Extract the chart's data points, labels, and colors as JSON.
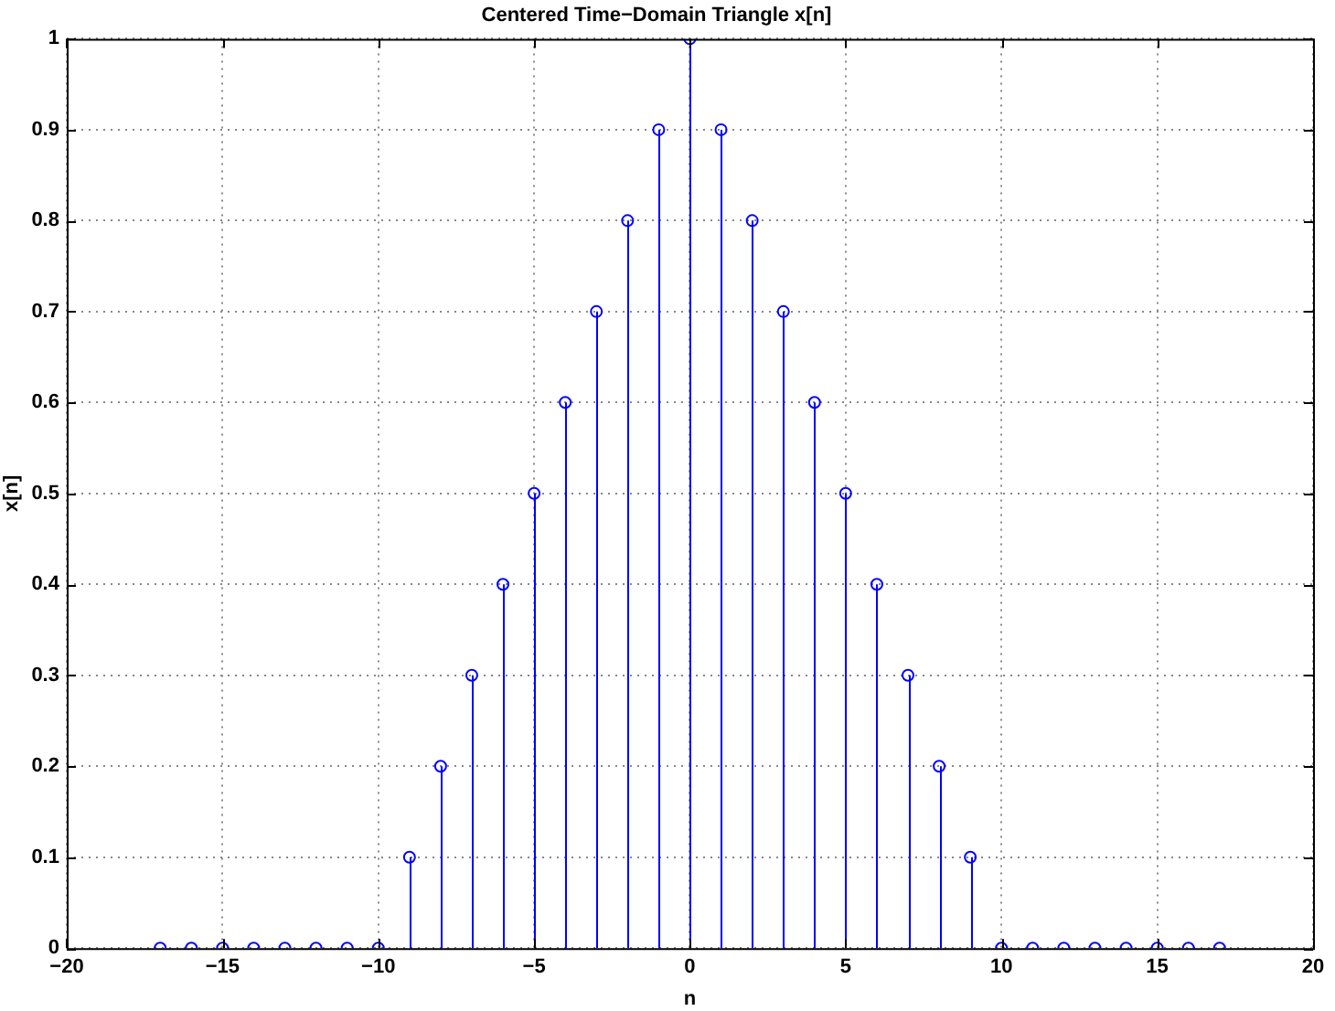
{
  "chart_data": {
    "type": "lollipop",
    "title": "Centered Time−Domain Triangle x[n]",
    "xlabel": "n",
    "ylabel": "x[n]",
    "x": [
      -17,
      -16,
      -15,
      -14,
      -13,
      -12,
      -11,
      -10,
      -9,
      -8,
      -7,
      -6,
      -5,
      -4,
      -3,
      -2,
      -1,
      0,
      1,
      2,
      3,
      4,
      5,
      6,
      7,
      8,
      9,
      10,
      11,
      12,
      13,
      14,
      15,
      16,
      17
    ],
    "values": [
      0,
      0,
      0,
      0,
      0,
      0,
      0,
      0,
      0.1,
      0.2,
      0.3,
      0.4,
      0.5,
      0.6,
      0.7,
      0.8,
      0.9,
      1,
      0.9,
      0.8,
      0.7,
      0.6,
      0.5,
      0.4,
      0.3,
      0.2,
      0.1,
      0,
      0,
      0,
      0,
      0,
      0,
      0,
      0
    ],
    "color": "#0000ff",
    "marker": "circle",
    "xlim": [
      -20,
      20
    ],
    "xticks": [
      {
        "value": -20,
        "label": "−20"
      },
      {
        "value": -15,
        "label": "−15"
      },
      {
        "value": -10,
        "label": "−10"
      },
      {
        "value": -5,
        "label": "−5"
      },
      0,
      5,
      10,
      15,
      20
    ],
    "ylim": [
      0,
      1
    ],
    "yticks": [
      0,
      0.1,
      0.2,
      0.3,
      0.4,
      0.5,
      0.6,
      0.7,
      0.8,
      0.9,
      1
    ],
    "grid": true,
    "legend": false
  }
}
